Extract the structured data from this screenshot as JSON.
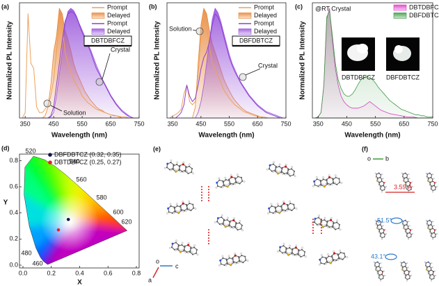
{
  "chart_data": [
    {
      "type": "line",
      "panel_label": "(a)",
      "xlabel": "Wavelength (nm)",
      "ylabel": "Normalized PL Intensity",
      "xlim": [
        330,
        750
      ],
      "xticks": [
        350,
        450,
        550,
        650,
        750
      ],
      "ylim": [
        0,
        1.05
      ],
      "label_box": "DBTDBFCZ",
      "annotations": [
        "Crystal",
        "Solution"
      ],
      "x": [
        340,
        350,
        360,
        370,
        380,
        390,
        400,
        410,
        420,
        430,
        440,
        450,
        460,
        470,
        480,
        490,
        500,
        510,
        520,
        530,
        540,
        550,
        560,
        570,
        580,
        590,
        600,
        610,
        620,
        630,
        640,
        650,
        660,
        670,
        680,
        690,
        700,
        710,
        720,
        730,
        740,
        750
      ],
      "series": [
        {
          "name": "Prompt",
          "color": "#eba25a",
          "fill": false,
          "values": [
            0,
            0.05,
            0.95,
            0.5,
            0.45,
            0.1,
            0.05,
            0.05,
            0.08,
            0.12,
            0.2,
            0.35,
            0.6,
            0.9,
            0.85,
            0.6,
            0.5,
            0.42,
            0.35,
            0.3,
            0.26,
            0.2,
            0.17,
            0.14,
            0.12,
            0.1,
            0.08,
            0.07,
            0.06,
            0.05,
            0.04,
            0.03,
            0.025,
            0.02,
            0.015,
            0.01,
            0.01,
            0.005,
            0,
            0,
            0,
            0
          ]
        },
        {
          "name": "Delayed",
          "color": "#e8873a",
          "fill": true,
          "values": [
            0,
            0,
            0,
            0,
            0,
            0,
            0,
            0,
            0.02,
            0.1,
            0.3,
            0.6,
            0.75,
            1.0,
            0.95,
            0.8,
            0.72,
            0.62,
            0.5,
            0.42,
            0.36,
            0.3,
            0.24,
            0.2,
            0.16,
            0.13,
            0.1,
            0.08,
            0.07,
            0.05,
            0.04,
            0.03,
            0.02,
            0.02,
            0.01,
            0,
            0,
            0,
            0,
            0,
            0,
            0
          ]
        },
        {
          "name": "Prompt",
          "color": "#8c3fd6",
          "fill": false,
          "values": [
            0,
            0,
            0,
            0,
            0,
            0,
            0,
            0,
            0,
            0,
            0.02,
            0.1,
            0.3,
            0.5,
            0.7,
            0.88,
            0.95,
            0.97,
            0.96,
            0.92,
            0.85,
            0.78,
            0.72,
            0.66,
            0.6,
            0.52,
            0.45,
            0.4,
            0.35,
            0.3,
            0.25,
            0.2,
            0.16,
            0.12,
            0.09,
            0.06,
            0.04,
            0.02,
            0.01,
            0,
            0,
            0
          ]
        },
        {
          "name": "Delayed",
          "color": "#9a55dc",
          "fill": true,
          "values": [
            0,
            0,
            0,
            0,
            0,
            0,
            0,
            0,
            0,
            0,
            0.01,
            0.05,
            0.2,
            0.4,
            0.6,
            0.85,
            0.97,
            1.0,
            0.98,
            0.93,
            0.86,
            0.8,
            0.74,
            0.68,
            0.62,
            0.55,
            0.48,
            0.42,
            0.36,
            0.31,
            0.26,
            0.21,
            0.17,
            0.13,
            0.1,
            0.07,
            0.05,
            0.03,
            0.01,
            0,
            0,
            0
          ]
        }
      ]
    },
    {
      "type": "line",
      "panel_label": "(b)",
      "xlabel": "Wavelength (nm)",
      "ylabel": "Normalized PL Intensity",
      "xlim": [
        330,
        750
      ],
      "xticks": [
        350,
        450,
        550,
        650,
        750
      ],
      "ylim": [
        0,
        1.05
      ],
      "label_box": "DBFDBTCZ",
      "annotations": [
        "Solution",
        "Crystal"
      ],
      "x": [
        340,
        350,
        360,
        370,
        380,
        390,
        400,
        410,
        420,
        430,
        440,
        450,
        460,
        470,
        480,
        490,
        500,
        510,
        520,
        530,
        540,
        550,
        560,
        570,
        580,
        590,
        600,
        610,
        620,
        630,
        640,
        650,
        660,
        670,
        680,
        690,
        700,
        710,
        720,
        730,
        740,
        750
      ],
      "series": [
        {
          "name": "Prompt",
          "color": "#eba25a",
          "fill": false,
          "values": [
            0,
            0.02,
            0.03,
            0.05,
            0.08,
            0.22,
            0.3,
            0.15,
            0.12,
            0.15,
            0.4,
            0.75,
            0.95,
            0.85,
            0.65,
            0.5,
            0.45,
            0.38,
            0.32,
            0.26,
            0.22,
            0.18,
            0.15,
            0.12,
            0.1,
            0.08,
            0.06,
            0.05,
            0.04,
            0.03,
            0.02,
            0.015,
            0.01,
            0.01,
            0.005,
            0,
            0,
            0,
            0,
            0,
            0,
            0
          ]
        },
        {
          "name": "Delayed",
          "color": "#e8873a",
          "fill": true,
          "values": [
            0,
            0,
            0,
            0,
            0,
            0,
            0,
            0,
            0,
            0.1,
            0.5,
            0.85,
            1.0,
            0.95,
            0.8,
            0.68,
            0.6,
            0.52,
            0.44,
            0.36,
            0.3,
            0.25,
            0.2,
            0.16,
            0.13,
            0.1,
            0.08,
            0.06,
            0.05,
            0.04,
            0.03,
            0.02,
            0.01,
            0,
            0,
            0,
            0,
            0,
            0,
            0,
            0,
            0
          ]
        },
        {
          "name": "Prompt",
          "color": "#8c3fd6",
          "fill": false,
          "values": [
            0,
            0,
            0,
            0.02,
            0.05,
            0.12,
            0.3,
            0.2,
            0.15,
            0.18,
            0.3,
            0.45,
            0.55,
            0.6,
            0.7,
            0.85,
            0.95,
            0.92,
            0.85,
            0.75,
            0.65,
            0.55,
            0.48,
            0.42,
            0.37,
            0.32,
            0.28,
            0.24,
            0.2,
            0.17,
            0.14,
            0.11,
            0.09,
            0.07,
            0.05,
            0.04,
            0.03,
            0.02,
            0.01,
            0,
            0,
            0
          ]
        },
        {
          "name": "Delayed",
          "color": "#9a55dc",
          "fill": true,
          "values": [
            0,
            0,
            0,
            0,
            0,
            0,
            0,
            0,
            0,
            0,
            0.05,
            0.15,
            0.3,
            0.5,
            0.7,
            0.9,
            1.0,
            0.96,
            0.88,
            0.78,
            0.68,
            0.58,
            0.5,
            0.44,
            0.38,
            0.33,
            0.29,
            0.25,
            0.21,
            0.18,
            0.15,
            0.12,
            0.1,
            0.08,
            0.06,
            0.05,
            0.04,
            0.03,
            0.02,
            0.01,
            0,
            0
          ]
        }
      ]
    },
    {
      "type": "line",
      "panel_label": "(c)",
      "xlabel": "Wavelength (nm)",
      "ylabel": "Normalized PL Intensity",
      "xlim": [
        330,
        750
      ],
      "xticks": [
        350,
        450,
        550,
        650,
        750
      ],
      "ylim": [
        0,
        1.05
      ],
      "annotations": [
        "@RT Crystal",
        "DBTDBFCZ",
        "DBFDBTCZ"
      ],
      "x": [
        340,
        350,
        360,
        370,
        380,
        390,
        400,
        410,
        420,
        430,
        440,
        450,
        460,
        470,
        480,
        490,
        500,
        510,
        520,
        530,
        540,
        550,
        560,
        570,
        580,
        590,
        600,
        610,
        620,
        630,
        640,
        650,
        660,
        670,
        680,
        690,
        700,
        710,
        720,
        730,
        740,
        750
      ],
      "series": [
        {
          "name": "DBTDBFCZ",
          "color": "#e03cc8",
          "fill": true,
          "values": [
            0,
            0.01,
            0.05,
            0.3,
            0.9,
            1.0,
            0.7,
            0.45,
            0.3,
            0.2,
            0.15,
            0.12,
            0.1,
            0.09,
            0.09,
            0.09,
            0.1,
            0.11,
            0.13,
            0.15,
            0.13,
            0.11,
            0.09,
            0.07,
            0.06,
            0.05,
            0.04,
            0.035,
            0.03,
            0.025,
            0.02,
            0.015,
            0.01,
            0.01,
            0.01,
            0.005,
            0,
            0,
            0,
            0,
            0,
            0
          ]
        },
        {
          "name": "DBFDBTCZ",
          "color": "#3f9a45",
          "fill": true,
          "values": [
            0,
            0.01,
            0.05,
            0.3,
            0.92,
            0.98,
            0.75,
            0.5,
            0.35,
            0.27,
            0.22,
            0.2,
            0.2,
            0.22,
            0.26,
            0.31,
            0.35,
            0.37,
            0.38,
            0.37,
            0.35,
            0.32,
            0.28,
            0.25,
            0.22,
            0.19,
            0.16,
            0.14,
            0.12,
            0.1,
            0.08,
            0.07,
            0.06,
            0.05,
            0.04,
            0.03,
            0.03,
            0.02,
            0.02,
            0.01,
            0.01,
            0.01
          ]
        }
      ]
    },
    {
      "type": "scatter",
      "panel_label": "(d)",
      "xlabel": "X",
      "ylabel": "Y",
      "xlim": [
        0,
        0.8
      ],
      "ylim": [
        0,
        0.85
      ],
      "xticks": [
        {
          "value": 0,
          "label": "0.0"
        },
        0.2,
        0.4,
        0.6,
        0.8
      ],
      "yticks": [
        {
          "value": 0,
          "label": "0.0"
        },
        0.2,
        0.4,
        0.6,
        0.8
      ],
      "series": [
        {
          "name": "DBFDBTCZ (0.32, 0.35)",
          "color": "#141452",
          "x": [
            0.32
          ],
          "y": [
            0.35
          ]
        },
        {
          "name": "DBTDBFCZ (0.25, 0.27)",
          "color": "#e8202a",
          "x": [
            0.25
          ],
          "y": [
            0.27
          ]
        }
      ],
      "locus_labels": [
        "520",
        "540",
        "560",
        "580",
        "600",
        "620",
        "480",
        "460"
      ]
    }
  ],
  "panel_e": {
    "label": "(e)",
    "axis_origin": "o",
    "axis_c": "c",
    "axis_a": "a"
  },
  "panel_f": {
    "label": "(f)",
    "axis_origin": "o",
    "axis_b": "b",
    "distance": "3.59 Å",
    "angle_1": "51.5°",
    "angle_2": "43.1°"
  }
}
